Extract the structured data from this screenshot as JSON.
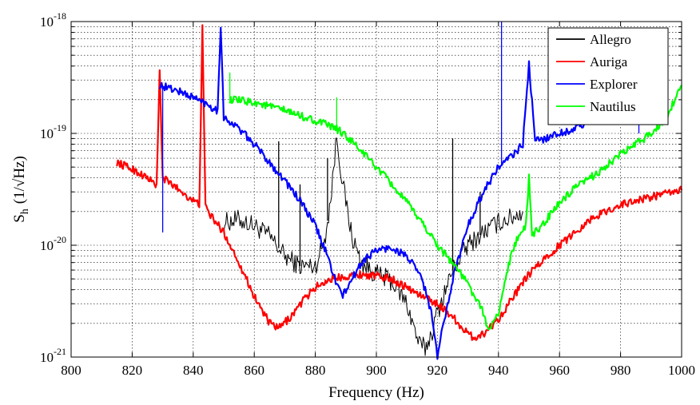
{
  "chart_data": {
    "type": "line",
    "xlabel": "Frequency (Hz)",
    "ylabel": "S",
    "ylabel_sub": "h",
    "ylabel_unit": "(1/√Hz)",
    "xlim": [
      800,
      1000
    ],
    "ylim": [
      1e-21,
      1e-18
    ],
    "yscale": "log",
    "grid": true,
    "legend_position": "top-right",
    "x_ticks": [
      "800",
      "820",
      "840",
      "860",
      "880",
      "900",
      "920",
      "940",
      "960",
      "980",
      "1000"
    ],
    "y_ticks": [
      {
        "base": "10",
        "exp": "-21",
        "value": 1e-21
      },
      {
        "base": "10",
        "exp": "-20",
        "value": 1e-20
      },
      {
        "base": "10",
        "exp": "-19",
        "value": 1e-19
      },
      {
        "base": "10",
        "exp": "-18",
        "value": 1e-18
      }
    ],
    "series": [
      {
        "name": "Allegro",
        "color": "#000000",
        "points": [
          [
            850,
            1.6e-20
          ],
          [
            855,
            1.7e-20
          ],
          [
            860,
            1.5e-20
          ],
          [
            865,
            1.2e-20
          ],
          [
            870,
            8e-21
          ],
          [
            875,
            6.5e-21
          ],
          [
            880,
            6.5e-21
          ],
          [
            883,
            1.1e-20
          ],
          [
            885,
            2.5e-20
          ],
          [
            887,
            9.5e-20
          ],
          [
            889,
            3.5e-20
          ],
          [
            892,
            1.2e-20
          ],
          [
            895,
            7e-21
          ],
          [
            900,
            5.5e-21
          ],
          [
            905,
            4.8e-21
          ],
          [
            910,
            3e-21
          ],
          [
            914,
            1.3e-21
          ],
          [
            916,
            1.2e-21
          ],
          [
            918,
            1.6e-21
          ],
          [
            920,
            2.5e-21
          ],
          [
            925,
            6e-21
          ],
          [
            930,
            1e-20
          ],
          [
            935,
            1.3e-20
          ],
          [
            940,
            1.6e-20
          ],
          [
            945,
            1.8e-20
          ],
          [
            948,
            2e-20
          ]
        ],
        "spikes": [
          [
            868,
            8.5e-20
          ],
          [
            875,
            3.5e-20
          ],
          [
            884,
            6e-20
          ],
          [
            925,
            9e-20
          ],
          [
            934,
            3e-20
          ]
        ]
      },
      {
        "name": "Auriga",
        "color": "#ff0000",
        "points": [
          [
            815,
            5.5e-20
          ],
          [
            820,
            4.8e-20
          ],
          [
            825,
            4e-20
          ],
          [
            828,
            3.4e-20
          ],
          [
            829,
            3.5e-19
          ],
          [
            830,
            4e-20
          ],
          [
            835,
            3.2e-20
          ],
          [
            840,
            2.5e-20
          ],
          [
            842,
            2.3e-20
          ],
          [
            843,
            9e-19
          ],
          [
            844,
            2.2e-20
          ],
          [
            846,
            1.8e-20
          ],
          [
            850,
            1.3e-20
          ],
          [
            855,
            7e-21
          ],
          [
            860,
            3.5e-21
          ],
          [
            865,
            2e-21
          ],
          [
            868,
            1.8e-21
          ],
          [
            872,
            2.3e-21
          ],
          [
            876,
            3.2e-21
          ],
          [
            880,
            4.2e-21
          ],
          [
            885,
            5e-21
          ],
          [
            890,
            5.3e-21
          ],
          [
            895,
            5.5e-21
          ],
          [
            900,
            5.3e-21
          ],
          [
            905,
            5e-21
          ],
          [
            910,
            4.2e-21
          ],
          [
            915,
            3.5e-21
          ],
          [
            920,
            3e-21
          ],
          [
            925,
            2.3e-21
          ],
          [
            930,
            1.6e-21
          ],
          [
            932,
            1.5e-21
          ],
          [
            935,
            1.6e-21
          ],
          [
            940,
            2.2e-21
          ],
          [
            945,
            3.5e-21
          ],
          [
            950,
            5.5e-21
          ],
          [
            955,
            7.5e-21
          ],
          [
            960,
            1e-20
          ],
          [
            965,
            1.3e-20
          ],
          [
            970,
            1.7e-20
          ],
          [
            975,
            2e-20
          ],
          [
            980,
            2.3e-20
          ],
          [
            985,
            2.5e-20
          ],
          [
            990,
            2.7e-20
          ],
          [
            995,
            2.9e-20
          ],
          [
            1000,
            3.1e-20
          ]
        ]
      },
      {
        "name": "Explorer",
        "color": "#0000ff",
        "points": [
          [
            829,
            2.7e-19
          ],
          [
            835,
            2.4e-19
          ],
          [
            840,
            2.1e-19
          ],
          [
            845,
            1.8e-19
          ],
          [
            848,
            1.6e-19
          ],
          [
            849,
            9.5e-19
          ],
          [
            850,
            1.4e-19
          ],
          [
            855,
            1.1e-19
          ],
          [
            860,
            8e-20
          ],
          [
            865,
            5.5e-20
          ],
          [
            870,
            3.8e-20
          ],
          [
            875,
            2.5e-20
          ],
          [
            880,
            1.5e-20
          ],
          [
            884,
            8e-21
          ],
          [
            887,
            4.5e-21
          ],
          [
            889,
            3.5e-21
          ],
          [
            892,
            5e-21
          ],
          [
            896,
            7.5e-21
          ],
          [
            900,
            9e-21
          ],
          [
            905,
            9.5e-21
          ],
          [
            910,
            8e-21
          ],
          [
            915,
            5e-21
          ],
          [
            918,
            2.5e-21
          ],
          [
            920,
            1e-21
          ],
          [
            922,
            2e-21
          ],
          [
            925,
            5e-21
          ],
          [
            930,
            1.5e-20
          ],
          [
            935,
            3e-20
          ],
          [
            940,
            5e-20
          ],
          [
            945,
            6.5e-20
          ],
          [
            948,
            8e-20
          ],
          [
            950,
            4.2e-19
          ],
          [
            952,
            8.5e-20
          ],
          [
            955,
            9e-20
          ],
          [
            960,
            1e-19
          ],
          [
            965,
            1.1e-19
          ],
          [
            968,
            1.2e-19
          ]
        ],
        "spikes": [
          [
            830,
            1.3e-20
          ],
          [
            941,
            1e-18
          ],
          [
            986,
            1e-19
          ]
        ]
      },
      {
        "name": "Nautilus",
        "color": "#00ff00",
        "points": [
          [
            852,
            2e-19
          ],
          [
            860,
            1.9e-19
          ],
          [
            870,
            1.6e-19
          ],
          [
            880,
            1.3e-19
          ],
          [
            887,
            1.1e-19
          ],
          [
            890,
            9.5e-20
          ],
          [
            895,
            7e-20
          ],
          [
            900,
            5e-20
          ],
          [
            905,
            3.5e-20
          ],
          [
            910,
            2.4e-20
          ],
          [
            915,
            1.6e-20
          ],
          [
            920,
            1e-20
          ],
          [
            925,
            7e-21
          ],
          [
            930,
            4.5e-21
          ],
          [
            935,
            2.5e-21
          ],
          [
            937,
            1.7e-21
          ],
          [
            940,
            2.5e-21
          ],
          [
            944,
            8e-21
          ],
          [
            947,
            1.3e-20
          ],
          [
            949,
            1.5e-20
          ],
          [
            950,
            4e-20
          ],
          [
            951,
            1.2e-20
          ],
          [
            955,
            1.6e-20
          ],
          [
            960,
            2.4e-20
          ],
          [
            965,
            3.2e-20
          ],
          [
            970,
            4e-20
          ],
          [
            975,
            5e-20
          ],
          [
            980,
            6.5e-20
          ],
          [
            985,
            8e-20
          ],
          [
            990,
            1e-19
          ],
          [
            995,
            1.4e-19
          ],
          [
            1000,
            2.7e-19
          ]
        ],
        "spikes": [
          [
            852,
            3.5e-19
          ],
          [
            870,
            1.6e-19
          ],
          [
            887,
            2.1e-19
          ],
          [
            920,
            1.1e-20
          ]
        ]
      }
    ]
  }
}
